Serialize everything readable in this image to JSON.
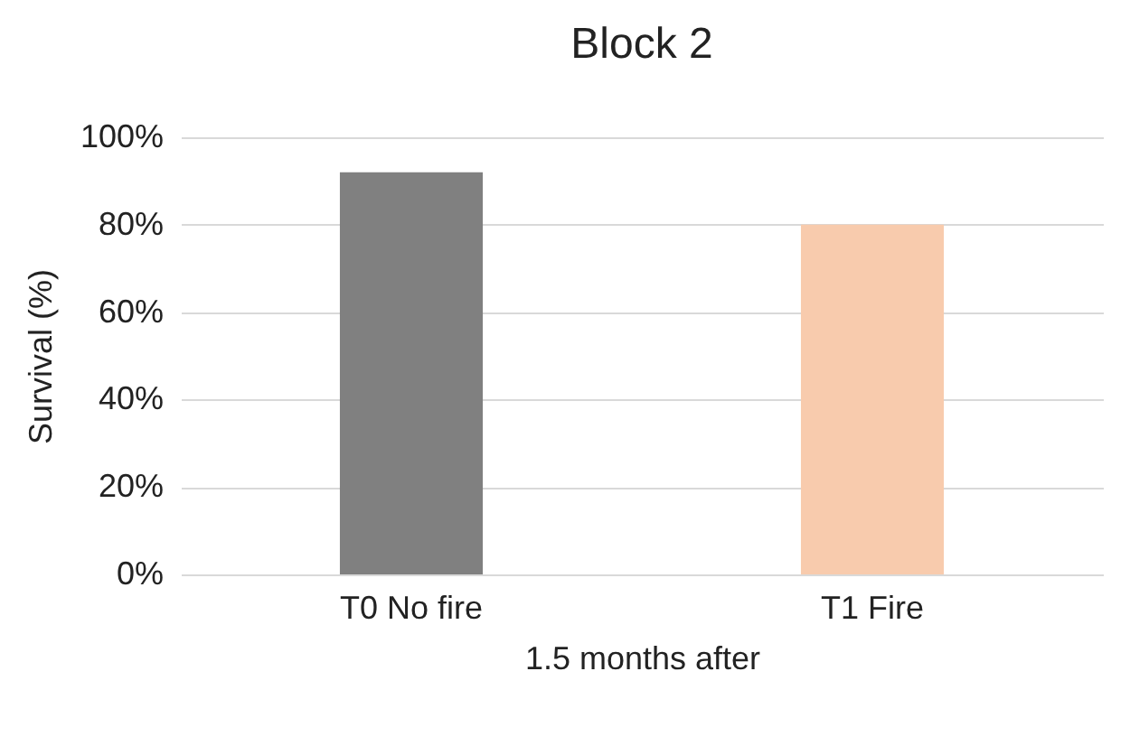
{
  "chart_data": {
    "type": "bar",
    "title": "Block 2",
    "xlabel": "1.5 months after",
    "ylabel": "Survival (%)",
    "categories": [
      "T0 No fire",
      "T1 Fire"
    ],
    "values": [
      92,
      80
    ],
    "colors": [
      "#808080",
      "#f8cbad"
    ],
    "ylim": [
      0,
      100
    ],
    "yticks": [
      {
        "value": 0,
        "label": "0%"
      },
      {
        "value": 20,
        "label": "20%"
      },
      {
        "value": 40,
        "label": "40%"
      },
      {
        "value": 60,
        "label": "60%"
      },
      {
        "value": 80,
        "label": "80%"
      },
      {
        "value": 100,
        "label": "100%"
      }
    ],
    "grid": "y"
  }
}
